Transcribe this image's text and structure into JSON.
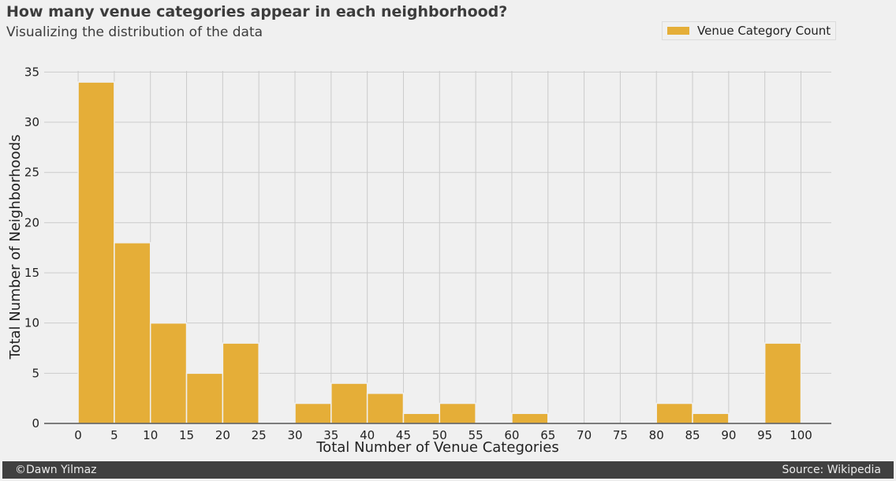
{
  "header": {
    "title": "How many venue categories appear in each neighborhood?",
    "subtitle": "Visualizing the distribution of the data"
  },
  "footer": {
    "author": "©Dawn Yilmaz",
    "source": "Source: Wikipedia"
  },
  "colors": {
    "bar": "#e5ae38",
    "background": "#f0f0f0",
    "grid": "#cbcbcb",
    "footer": "#404040"
  },
  "chart_data": {
    "type": "bar",
    "title": "How many venue categories appear in each neighborhood?",
    "subtitle": "Visualizing the distribution of the data",
    "xlabel": "Total Number of Venue Categories",
    "ylabel": "Total Number of Neighborhoods",
    "bin_edges": [
      0,
      5,
      10,
      15,
      20,
      25,
      30,
      35,
      40,
      45,
      50,
      55,
      60,
      65,
      70,
      75,
      80,
      85,
      90,
      95,
      100
    ],
    "series": [
      {
        "name": "Venue Category Count",
        "values": [
          34,
          18,
          10,
          5,
          8,
          0,
          2,
          4,
          3,
          1,
          2,
          0,
          1,
          0,
          0,
          0,
          2,
          1,
          0,
          8
        ]
      }
    ],
    "xticks": [
      0,
      5,
      10,
      15,
      20,
      25,
      30,
      35,
      40,
      45,
      50,
      55,
      60,
      65,
      70,
      75,
      80,
      85,
      90,
      95,
      100
    ],
    "yticks": [
      0,
      5,
      10,
      15,
      20,
      25,
      30,
      35
    ],
    "xlim": [
      -4.7,
      104.2
    ],
    "ylim": [
      0,
      35.5
    ],
    "grid": true,
    "legend_position": "top-right"
  }
}
